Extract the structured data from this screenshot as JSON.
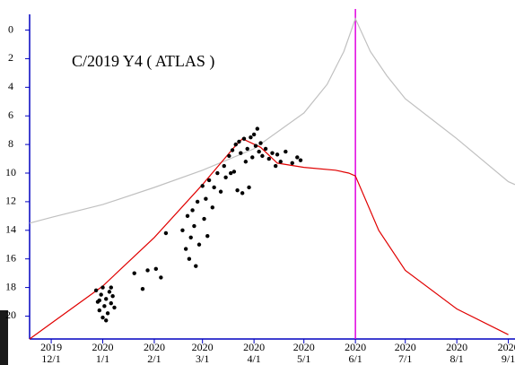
{
  "chart_data": {
    "type": "line",
    "title": "C/2019 Y4 ( ATLAS )",
    "xlim": [
      "2019-11-18",
      "2020-09-05"
    ],
    "ylim": [
      -1.1,
      21.6
    ],
    "y_inverted": true,
    "yticks": [
      0,
      2,
      4,
      6,
      8,
      10,
      12,
      14,
      16,
      18,
      20
    ],
    "xticks": [
      {
        "value": "2019-12-01",
        "label": "2019\n12/1"
      },
      {
        "value": "2020-01-01",
        "label": "2020\n1/1"
      },
      {
        "value": "2020-02-01",
        "label": "2020\n2/1"
      },
      {
        "value": "2020-03-01",
        "label": "2020\n3/1"
      },
      {
        "value": "2020-04-01",
        "label": "2020\n4/1"
      },
      {
        "value": "2020-05-01",
        "label": "2020\n5/1"
      },
      {
        "value": "2020-06-01",
        "label": "2020\n6/1"
      },
      {
        "value": "2020-07-01",
        "label": "2020\n7/1"
      },
      {
        "value": "2020-08-01",
        "label": "2020\n8/1"
      },
      {
        "value": "2020-09-01",
        "label": "2020\n9/1"
      }
    ],
    "vline": {
      "x": "2020-06-01",
      "color": "#e000e0"
    },
    "series": [
      {
        "type": "line",
        "color": "#c0c0c0",
        "x": [
          "2019-11-18",
          "2019-12-01",
          "2020-01-01",
          "2020-02-01",
          "2020-03-01",
          "2020-04-01",
          "2020-05-01",
          "2020-05-15",
          "2020-05-25",
          "2020-06-01",
          "2020-06-10",
          "2020-06-20",
          "2020-07-01",
          "2020-08-01",
          "2020-09-01",
          "2020-09-05"
        ],
        "values": [
          13.5,
          13.1,
          12.2,
          11.0,
          9.8,
          8.3,
          5.8,
          3.8,
          1.5,
          -0.8,
          1.5,
          3.2,
          4.8,
          7.6,
          10.6,
          10.8
        ]
      },
      {
        "type": "line",
        "color": "#e00000",
        "x": [
          "2019-11-18",
          "2019-12-01",
          "2020-01-01",
          "2020-02-01",
          "2020-03-01",
          "2020-03-20",
          "2020-03-25",
          "2020-04-05",
          "2020-04-15",
          "2020-05-01",
          "2020-05-20",
          "2020-05-28",
          "2020-06-01",
          "2020-06-15",
          "2020-07-01",
          "2020-08-01",
          "2020-09-01"
        ],
        "values": [
          21.6,
          20.5,
          17.9,
          14.5,
          10.8,
          8.2,
          7.6,
          8.2,
          9.3,
          9.6,
          9.8,
          10.0,
          10.2,
          14.0,
          16.8,
          19.5,
          21.3
        ]
      },
      {
        "type": "scatter",
        "color": "#000000",
        "x": [
          "2019-12-28",
          "2019-12-29",
          "2019-12-30",
          "2019-12-31",
          "2020-01-01",
          "2020-01-01",
          "2020-01-02",
          "2020-01-03",
          "2020-01-04",
          "2020-01-05",
          "2020-01-06",
          "2020-01-07",
          "2020-01-08",
          "2019-12-30",
          "2020-01-03",
          "2020-01-06",
          "2020-01-20",
          "2020-01-25",
          "2020-01-28",
          "2020-02-02",
          "2020-02-05",
          "2020-02-08",
          "2020-02-18",
          "2020-02-20",
          "2020-02-21",
          "2020-02-22",
          "2020-02-23",
          "2020-02-24",
          "2020-02-25",
          "2020-02-26",
          "2020-02-27",
          "2020-02-28",
          "2020-03-01",
          "2020-03-02",
          "2020-03-03",
          "2020-03-04",
          "2020-03-05",
          "2020-03-07",
          "2020-03-08",
          "2020-03-10",
          "2020-03-12",
          "2020-03-14",
          "2020-03-15",
          "2020-03-17",
          "2020-03-18",
          "2020-03-19",
          "2020-03-20",
          "2020-03-21",
          "2020-03-22",
          "2020-03-23",
          "2020-03-24",
          "2020-03-25",
          "2020-03-26",
          "2020-03-27",
          "2020-03-28",
          "2020-03-29",
          "2020-03-30",
          "2020-03-31",
          "2020-04-01",
          "2020-04-02",
          "2020-04-03",
          "2020-04-04",
          "2020-04-05",
          "2020-04-06",
          "2020-04-08",
          "2020-04-10",
          "2020-04-12",
          "2020-04-14",
          "2020-04-15",
          "2020-04-17",
          "2020-04-20",
          "2020-04-24",
          "2020-04-27",
          "2020-04-29"
        ],
        "values": [
          18.2,
          19.0,
          19.6,
          18.5,
          20.1,
          18.0,
          19.3,
          18.8,
          19.8,
          18.3,
          19.1,
          18.6,
          19.4,
          18.9,
          20.3,
          18.0,
          17.0,
          18.1,
          16.8,
          16.7,
          17.3,
          14.2,
          14.0,
          15.3,
          13.0,
          16.0,
          14.5,
          12.6,
          13.7,
          16.5,
          12.0,
          15.0,
          10.9,
          13.2,
          11.8,
          14.4,
          10.5,
          12.4,
          11.0,
          10.0,
          11.3,
          9.5,
          10.3,
          8.8,
          10.0,
          8.4,
          9.9,
          8.0,
          11.2,
          7.8,
          8.6,
          11.4,
          7.6,
          9.2,
          8.3,
          11.0,
          7.5,
          8.9,
          7.3,
          8.1,
          6.9,
          8.5,
          7.9,
          8.8,
          8.3,
          9.0,
          8.6,
          9.5,
          8.7,
          9.2,
          8.5,
          9.3,
          8.9,
          9.1
        ]
      }
    ]
  }
}
